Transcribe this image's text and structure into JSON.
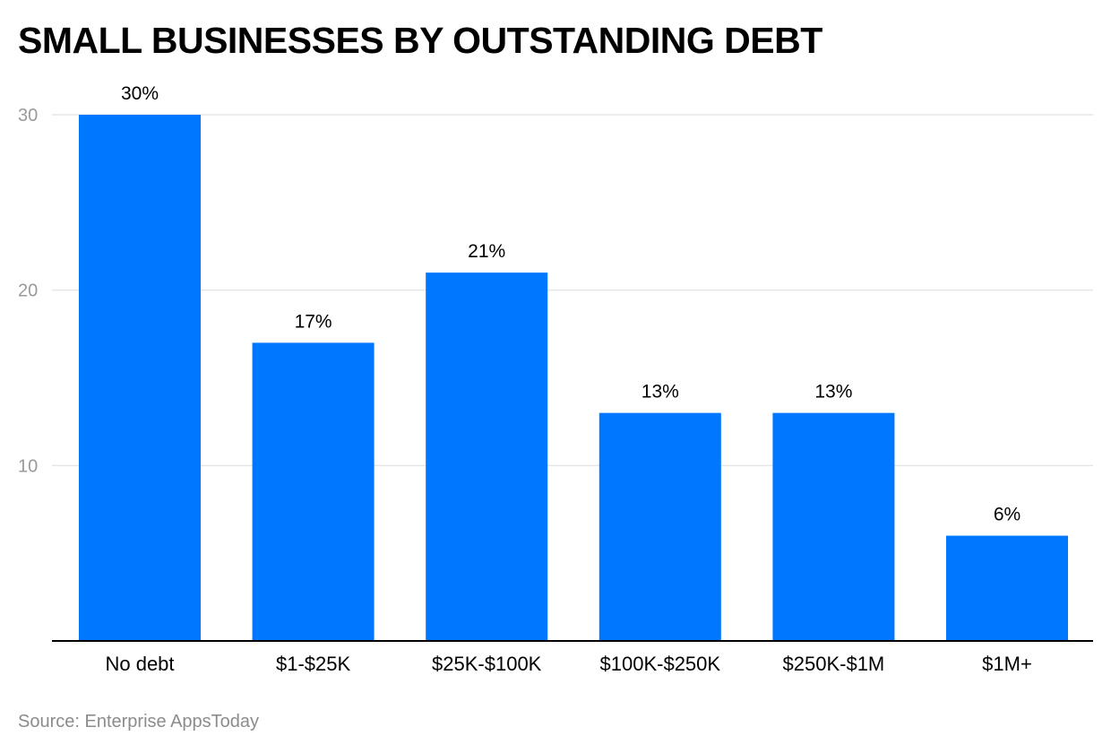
{
  "chart_data": {
    "type": "bar",
    "title": "SMALL BUSINESSES BY OUTSTANDING DEBT",
    "categories": [
      "No debt",
      "$1-$25K",
      "$25K-$100K",
      "$100K-$250K",
      "$250K-$1M",
      "$1M+"
    ],
    "values": [
      30,
      17,
      21,
      13,
      13,
      6
    ],
    "data_labels": [
      "30%",
      "17%",
      "21%",
      "13%",
      "13%",
      "6%"
    ],
    "xlabel": "",
    "ylabel": "",
    "ylim": [
      0,
      30
    ],
    "yticks": [
      10,
      20,
      30
    ],
    "grid": true,
    "legend": "none",
    "bar_color": "#0077ff",
    "grid_color": "#e6e6e6",
    "axis_color": "#000000"
  },
  "source": "Source: Enterprise AppsToday"
}
